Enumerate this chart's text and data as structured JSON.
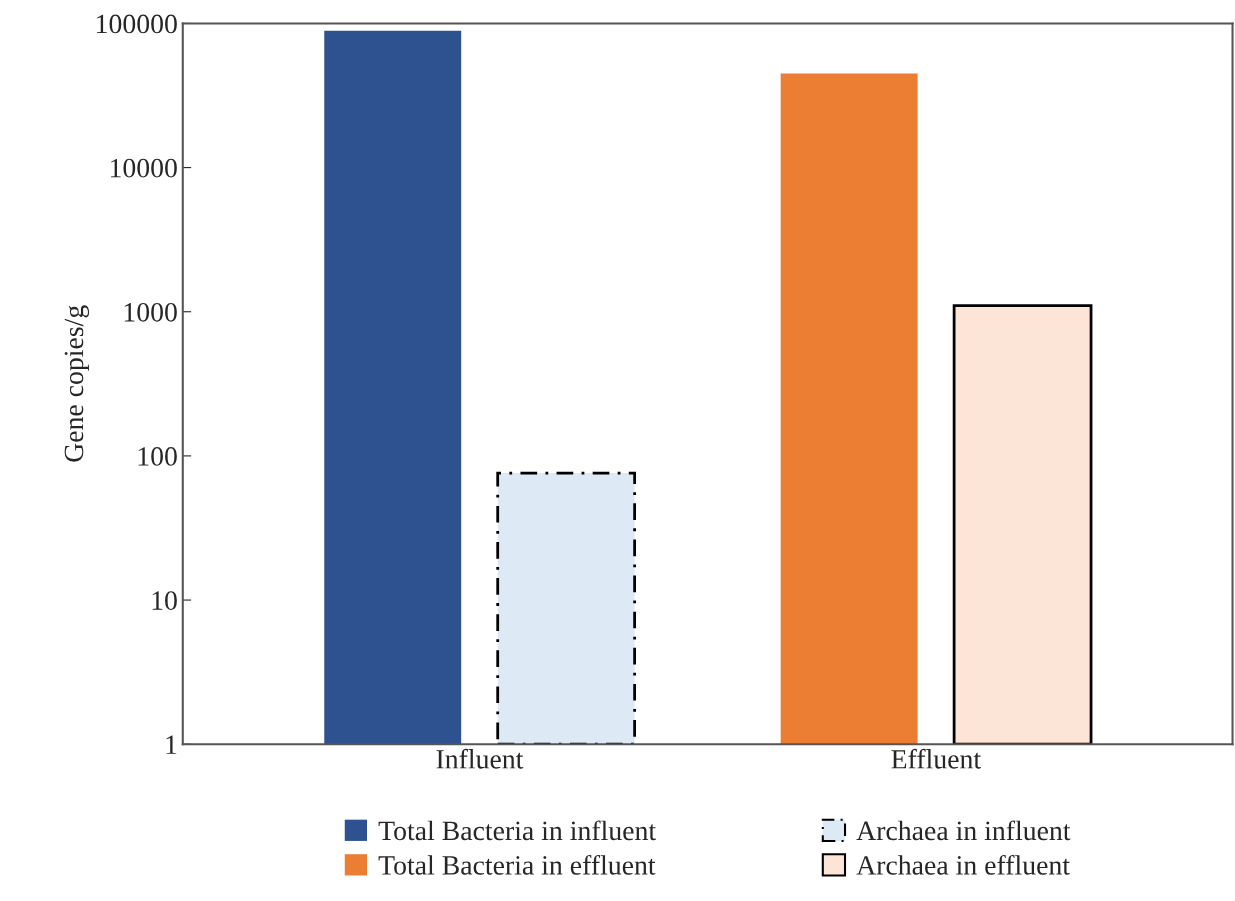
{
  "chart_data": {
    "type": "bar",
    "ylabel": "Gene copies/g",
    "categories": [
      "Influent",
      "Effluent"
    ],
    "series": [
      {
        "name": "Total Bacteria in influent",
        "color": "#2e518f",
        "values": [
          89000,
          null
        ]
      },
      {
        "name": "Archaea in influent",
        "color": "#dde9f5",
        "values": [
          75,
          null
        ],
        "line_style": "dashed"
      },
      {
        "name": "Total Bacteria in effluent",
        "color": "#eb7e32",
        "values": [
          null,
          45000
        ]
      },
      {
        "name": "Archaea in effluent",
        "color": "#fce4d6",
        "values": [
          null,
          1100
        ],
        "line_style": "solid"
      }
    ],
    "log": true,
    "ylim": [
      1,
      100000
    ],
    "yticks": [
      1,
      10,
      100,
      1000,
      10000,
      100000
    ],
    "grid": false,
    "legend": "bottom"
  }
}
